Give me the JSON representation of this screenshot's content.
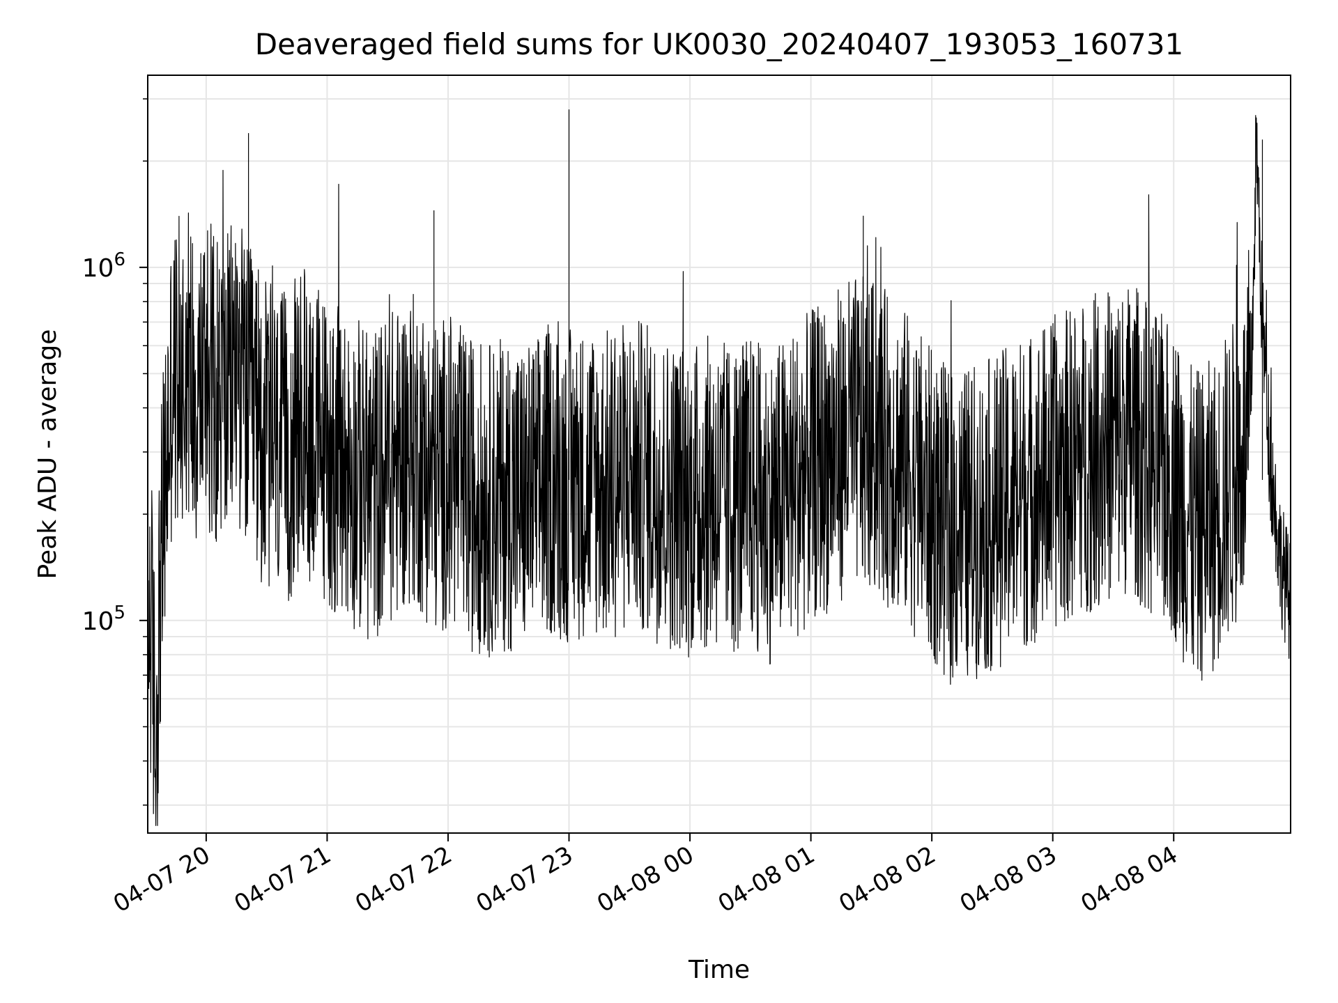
{
  "chart_data": {
    "type": "line",
    "title": "Deaveraged field sums for UK0030_20240407_193053_160731",
    "xlabel": "Time",
    "ylabel": "Peak ADU - average",
    "yscale": "log",
    "ylim": [
      25000,
      3500000
    ],
    "xlim": [
      "2024-04-07 19:31",
      "2024-04-08 04:58"
    ],
    "x_ticks": [
      {
        "value": "2024-04-07 20:00",
        "label": "04-07 20"
      },
      {
        "value": "2024-04-07 21:00",
        "label": "04-07 21"
      },
      {
        "value": "2024-04-07 22:00",
        "label": "04-07 22"
      },
      {
        "value": "2024-04-07 23:00",
        "label": "04-07 23"
      },
      {
        "value": "2024-04-08 00:00",
        "label": "04-08 00"
      },
      {
        "value": "2024-04-08 01:00",
        "label": "04-08 01"
      },
      {
        "value": "2024-04-08 02:00",
        "label": "04-08 02"
      },
      {
        "value": "2024-04-08 03:00",
        "label": "04-08 03"
      },
      {
        "value": "2024-04-08 04:00",
        "label": "04-08 04"
      }
    ],
    "y_major_ticks": [
      {
        "value": 100000,
        "base": "10",
        "exp": "5"
      },
      {
        "value": 1000000,
        "base": "10",
        "exp": "6"
      }
    ],
    "grid": true,
    "line_color": "#000000",
    "grid_color": "#e6e6e6",
    "series": [
      {
        "x": [
          "2024-04-07 19:31",
          "2024-04-07 19:33",
          "2024-04-07 19:35",
          "2024-04-07 19:37",
          "2024-04-07 19:40",
          "2024-04-07 19:43",
          "2024-04-07 19:47",
          "2024-04-07 19:51",
          "2024-04-07 19:55",
          "2024-04-07 20:00",
          "2024-04-07 20:05",
          "2024-04-07 20:10",
          "2024-04-07 20:15",
          "2024-04-07 20:20",
          "2024-04-07 20:25",
          "2024-04-07 20:30",
          "2024-04-07 20:35",
          "2024-04-07 20:40",
          "2024-04-07 20:45",
          "2024-04-07 20:50",
          "2024-04-07 20:55",
          "2024-04-07 21:00",
          "2024-04-07 21:05",
          "2024-04-07 21:10",
          "2024-04-07 21:15",
          "2024-04-07 21:20",
          "2024-04-07 21:25",
          "2024-04-07 21:30",
          "2024-04-07 21:35",
          "2024-04-07 21:40",
          "2024-04-07 21:45",
          "2024-04-07 21:50",
          "2024-04-07 21:55",
          "2024-04-07 22:00",
          "2024-04-07 22:10",
          "2024-04-07 22:20",
          "2024-04-07 22:30",
          "2024-04-07 22:40",
          "2024-04-07 22:50",
          "2024-04-07 23:00",
          "2024-04-07 23:10",
          "2024-04-07 23:20",
          "2024-04-07 23:30",
          "2024-04-07 23:40",
          "2024-04-07 23:50",
          "2024-04-08 00:00",
          "2024-04-08 00:10",
          "2024-04-08 00:20",
          "2024-04-08 00:30",
          "2024-04-08 00:40",
          "2024-04-08 00:50",
          "2024-04-08 01:00",
          "2024-04-08 01:10",
          "2024-04-08 01:20",
          "2024-04-08 01:30",
          "2024-04-08 01:40",
          "2024-04-08 01:50",
          "2024-04-08 02:00",
          "2024-04-08 02:10",
          "2024-04-08 02:20",
          "2024-04-08 02:30",
          "2024-04-08 02:40",
          "2024-04-08 02:50",
          "2024-04-08 03:00",
          "2024-04-08 03:10",
          "2024-04-08 03:20",
          "2024-04-08 03:30",
          "2024-04-08 03:40",
          "2024-04-08 03:50",
          "2024-04-08 04:00",
          "2024-04-08 04:10",
          "2024-04-08 04:20",
          "2024-04-08 04:30",
          "2024-04-08 04:38",
          "2024-04-08 04:41",
          "2024-04-08 04:44",
          "2024-04-08 04:48",
          "2024-04-08 04:53",
          "2024-04-08 04:58"
        ],
        "y": [
          110000,
          90000,
          42000,
          120000,
          260000,
          480000,
          500000,
          560000,
          450000,
          520000,
          460000,
          430000,
          560000,
          420000,
          380000,
          330000,
          310000,
          300000,
          340000,
          370000,
          330000,
          300000,
          280000,
          270000,
          260000,
          240000,
          250000,
          270000,
          280000,
          310000,
          300000,
          270000,
          250000,
          270000,
          230000,
          220000,
          230000,
          220000,
          250000,
          240000,
          250000,
          240000,
          260000,
          250000,
          230000,
          220000,
          230000,
          220000,
          230000,
          210000,
          240000,
          270000,
          300000,
          340000,
          330000,
          300000,
          260000,
          210000,
          180000,
          190000,
          200000,
          220000,
          240000,
          260000,
          280000,
          300000,
          320000,
          330000,
          270000,
          250000,
          180000,
          200000,
          260000,
          330000,
          2300000,
          700000,
          280000,
          150000,
          110000
        ]
      }
    ],
    "notes_peaks": [
      {
        "x": "2024-04-07 20:21",
        "y": 2400000
      },
      {
        "x": "2024-04-07 23:00",
        "y": 2800000
      },
      {
        "x": "2024-04-08 04:44",
        "y": 2300000
      },
      {
        "x": "2024-04-08 01:26",
        "y": 1400000
      },
      {
        "x": "2024-04-07 21:53",
        "y": 1450000
      }
    ]
  }
}
